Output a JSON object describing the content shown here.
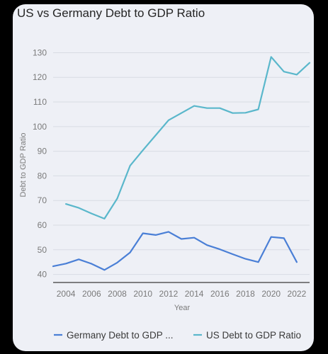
{
  "chart_data": {
    "type": "line",
    "title": "US vs Germany Debt to GDP Ratio",
    "xlabel": "Year",
    "ylabel": "Debt to GDP Ratio",
    "x": [
      2003,
      2004,
      2005,
      2006,
      2007,
      2008,
      2009,
      2010,
      2011,
      2012,
      2013,
      2014,
      2015,
      2016,
      2017,
      2018,
      2019,
      2020,
      2021,
      2022,
      2023
    ],
    "xlim": [
      2003,
      2023
    ],
    "ylim": [
      37,
      133
    ],
    "x_ticks": [
      "2004",
      "2006",
      "2008",
      "2010",
      "2012",
      "2014",
      "2016",
      "2018",
      "2020",
      "2022"
    ],
    "y_ticks": [
      "40",
      "50",
      "60",
      "70",
      "80",
      "90",
      "100",
      "110",
      "120",
      "130"
    ],
    "grid": true,
    "legend_position": "bottom",
    "series": [
      {
        "name": "Germany Debt to GDP ...",
        "color": "#4a7fd6",
        "values": [
          43.3,
          44.4,
          46.1,
          44.3,
          41.8,
          44.8,
          48.9,
          56.7,
          56.0,
          57.3,
          54.4,
          54.9,
          51.9,
          50.2,
          48.2,
          46.3,
          45.0,
          55.2,
          54.7,
          45.0,
          null
        ]
      },
      {
        "name": "US Debt to GDP Ratio",
        "color": "#5ab7cb",
        "values": [
          null,
          68.6,
          67.0,
          64.7,
          62.6,
          70.8,
          84.1,
          90.4,
          96.5,
          102.6,
          105.5,
          108.4,
          107.5,
          107.5,
          105.5,
          105.6,
          107.0,
          128.3,
          122.3,
          121.1,
          125.9
        ]
      }
    ]
  }
}
